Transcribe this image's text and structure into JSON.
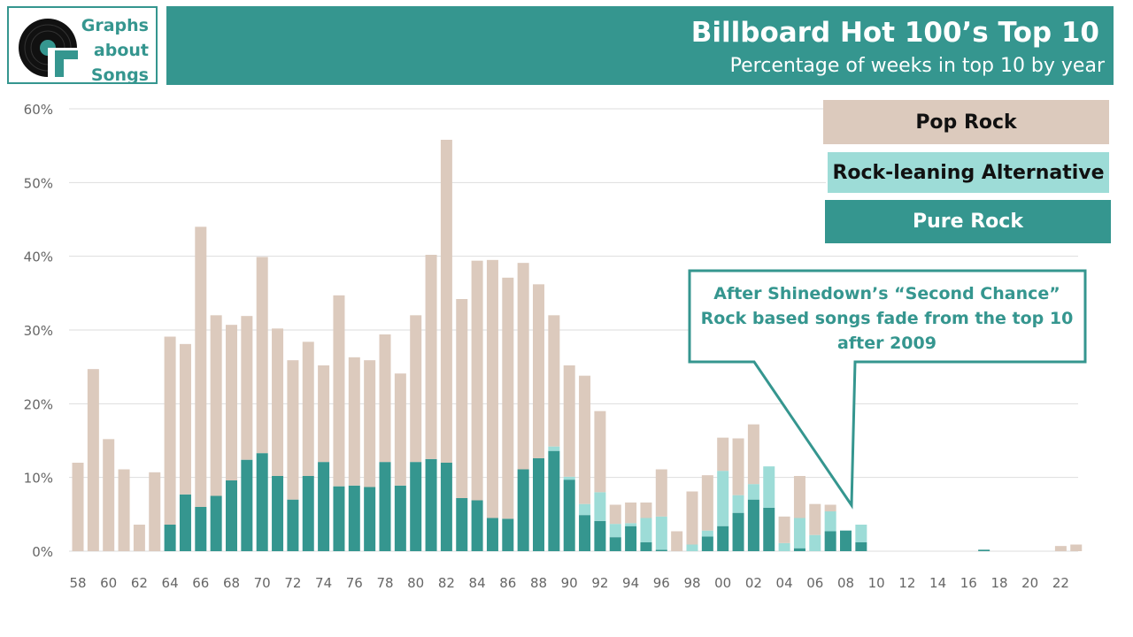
{
  "logo": {
    "line1": "Graphs",
    "line2": "about",
    "line3": "Songs"
  },
  "header": {
    "title": "Billboard Hot 100’s Top 10",
    "subtitle": "Percentage of weeks in top 10 by year"
  },
  "annotation": {
    "line1": "After Shinedown’s “Second Chance”",
    "line2": "Rock based songs fade from the top 10",
    "line3": "after 2009"
  },
  "colors": {
    "pop": "#dccabd",
    "alt": "#9ddcd7",
    "pure": "#35968f",
    "grid": "#dddddd",
    "axis_text": "#666666"
  },
  "chart_data": {
    "type": "bar",
    "stacked": true,
    "ylim": [
      0,
      0.6
    ],
    "yticks": [
      0,
      0.1,
      0.2,
      0.3,
      0.4,
      0.5,
      0.6
    ],
    "ytick_labels": [
      "0%",
      "10%",
      "20%",
      "30%",
      "40%",
      "50%",
      "60%"
    ],
    "categories": [
      "58",
      "59",
      "60",
      "61",
      "62",
      "63",
      "64",
      "65",
      "66",
      "67",
      "68",
      "69",
      "70",
      "71",
      "72",
      "73",
      "74",
      "75",
      "76",
      "77",
      "78",
      "79",
      "80",
      "81",
      "82",
      "83",
      "84",
      "85",
      "86",
      "87",
      "88",
      "89",
      "90",
      "91",
      "92",
      "93",
      "94",
      "95",
      "96",
      "97",
      "98",
      "99",
      "00",
      "01",
      "02",
      "03",
      "04",
      "05",
      "06",
      "07",
      "08",
      "09",
      "10",
      "11",
      "12",
      "13",
      "14",
      "15",
      "16",
      "17",
      "18",
      "19",
      "20",
      "21",
      "22",
      "23"
    ],
    "xtick_labels": [
      "58",
      "60",
      "62",
      "64",
      "66",
      "68",
      "70",
      "72",
      "74",
      "76",
      "78",
      "80",
      "82",
      "84",
      "86",
      "88",
      "90",
      "92",
      "94",
      "96",
      "98",
      "00",
      "02",
      "04",
      "06",
      "08",
      "10",
      "12",
      "14",
      "16",
      "18",
      "20",
      "22"
    ],
    "series": [
      {
        "name": "Pure Rock",
        "values": [
          0,
          0,
          0,
          0,
          0,
          0,
          0.036,
          0.077,
          0.06,
          0.075,
          0.096,
          0.124,
          0.133,
          0.102,
          0.07,
          0.102,
          0.121,
          0.088,
          0.089,
          0.087,
          0.121,
          0.089,
          0.121,
          0.125,
          0.12,
          0.072,
          0.069,
          0.045,
          0.044,
          0.111,
          0.126,
          0.136,
          0.097,
          0.049,
          0.041,
          0.019,
          0.034,
          0.012,
          0.002,
          0,
          0,
          0.02,
          0.034,
          0.052,
          0.07,
          0.059,
          0,
          0.004,
          0,
          0.027,
          0.028,
          0.012,
          0,
          0,
          0,
          0,
          0,
          0,
          0,
          0.002,
          0,
          0,
          0,
          0,
          0,
          0
        ]
      },
      {
        "name": "Rock-leaning Alternative",
        "values": [
          0,
          0,
          0,
          0,
          0,
          0,
          0,
          0,
          0,
          0,
          0,
          0,
          0,
          0,
          0,
          0,
          0,
          0,
          0,
          0,
          0,
          0,
          0,
          0,
          0,
          0,
          0,
          0,
          0,
          0,
          0,
          0.006,
          0.004,
          0.015,
          0.039,
          0.018,
          0.004,
          0.033,
          0.045,
          0,
          0.009,
          0.008,
          0.075,
          0.024,
          0.021,
          0.056,
          0.011,
          0.041,
          0.022,
          0.027,
          0,
          0.024,
          0,
          0,
          0,
          0,
          0,
          0,
          0,
          0,
          0,
          0,
          0,
          0,
          0,
          0
        ]
      },
      {
        "name": "Pop Rock",
        "values": [
          0.12,
          0.247,
          0.152,
          0.111,
          0.036,
          0.107,
          0.255,
          0.204,
          0.38,
          0.245,
          0.211,
          0.195,
          0.266,
          0.2,
          0.189,
          0.182,
          0.131,
          0.259,
          0.174,
          0.172,
          0.173,
          0.152,
          0.199,
          0.277,
          0.438,
          0.27,
          0.325,
          0.35,
          0.327,
          0.28,
          0.236,
          0.178,
          0.151,
          0.174,
          0.11,
          0.026,
          0.028,
          0.021,
          0.064,
          0.027,
          0.072,
          0.075,
          0.045,
          0.077,
          0.081,
          0,
          0.036,
          0.057,
          0.042,
          0.009,
          0,
          0,
          0,
          0,
          0,
          0,
          0,
          0,
          0,
          0,
          0,
          0,
          0,
          0,
          0.007,
          0.009
        ]
      }
    ],
    "legend": {
      "position": "top-right",
      "entries": [
        "Pop Rock",
        "Rock-leaning Alternative",
        "Pure Rock"
      ]
    },
    "grid": true
  }
}
